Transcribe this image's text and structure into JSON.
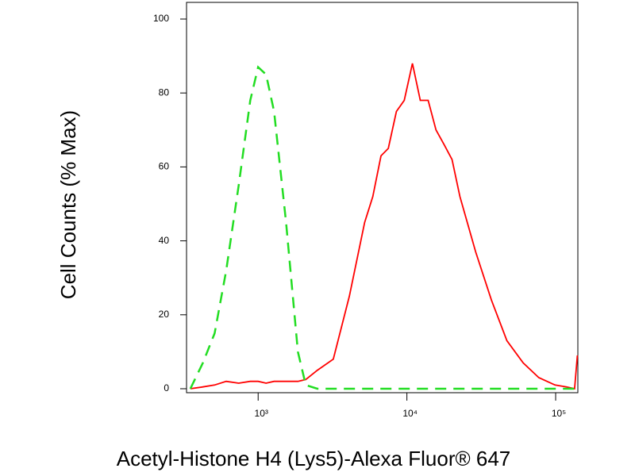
{
  "chart_data": {
    "type": "line",
    "x_label": "Acetyl-Histone H4 (Lys5)-Alexa Fluor® 647",
    "y_label": "Cell Counts (% Max)",
    "x_scale": "log",
    "xlim": [
      330,
      141000
    ],
    "ylim": [
      0,
      100
    ],
    "xticks": [
      {
        "value": 1000,
        "label": "10³"
      },
      {
        "value": 10000,
        "label": "10⁴"
      },
      {
        "value": 100000,
        "label": "10⁵"
      }
    ],
    "yticks": [
      0,
      20,
      40,
      60,
      80,
      100
    ],
    "x": [
      350,
      425,
      510,
      610,
      740,
      885,
      1000,
      1130,
      1280,
      1540,
      1850,
      2090,
      2500,
      3200,
      4100,
      5200,
      5900,
      6700,
      7500,
      8500,
      9600,
      10900,
      12300,
      13900,
      15700,
      17800,
      20100,
      22700,
      29000,
      37000,
      47000,
      60500,
      77000,
      99000,
      118500,
      134000,
      140000
    ],
    "series": [
      {
        "color": "#ff0000",
        "dash": "solid",
        "values": [
          0,
          0.5,
          1,
          2,
          1.5,
          2,
          2,
          1.5,
          2,
          2,
          2,
          2.5,
          5,
          8,
          25,
          45,
          52,
          63,
          65,
          75,
          78,
          88,
          78,
          78,
          70,
          66,
          62,
          52,
          37,
          24,
          13,
          7,
          3,
          1,
          0.5,
          0,
          9
        ]
      },
      {
        "color": "#22dd22",
        "dash": "dashed",
        "values": [
          0,
          7,
          15,
          32,
          55,
          78,
          87,
          85,
          75,
          45,
          10,
          1,
          0,
          0,
          0,
          0,
          0,
          0,
          0,
          0,
          0,
          0,
          0,
          0,
          0,
          0,
          0,
          0,
          0,
          0,
          0,
          0,
          0,
          0,
          0,
          0,
          0
        ]
      }
    ]
  }
}
